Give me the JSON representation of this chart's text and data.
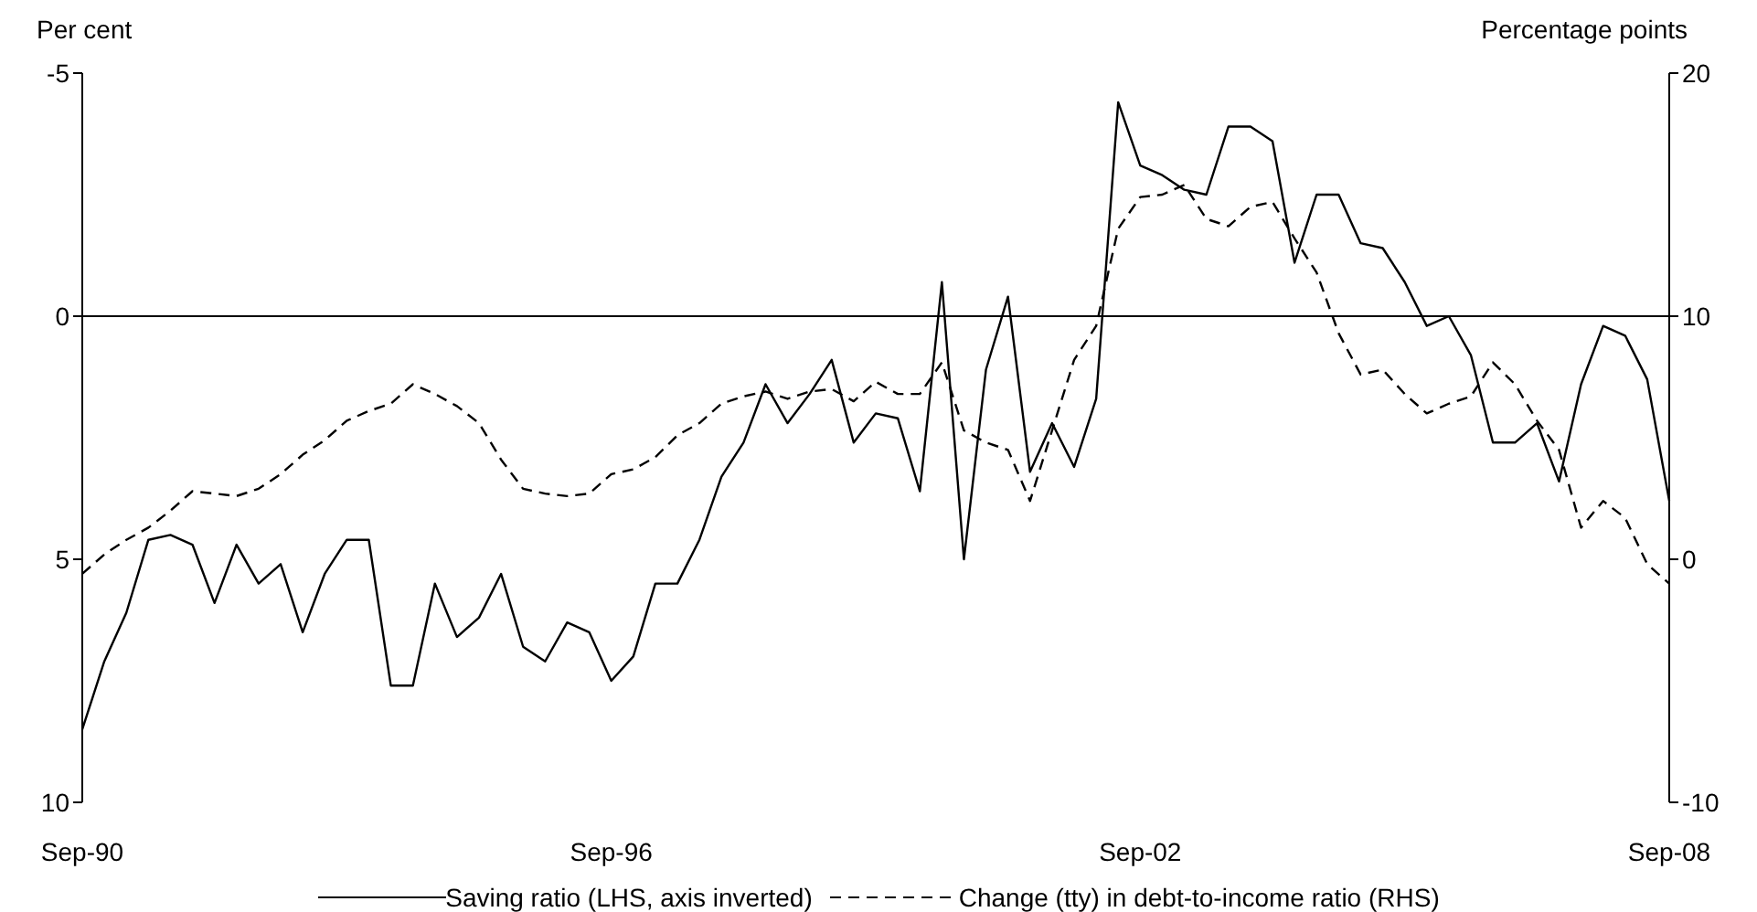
{
  "chart_data": {
    "type": "line",
    "categories": [
      "Sep-90",
      null,
      null,
      null,
      null,
      null,
      null,
      null,
      null,
      null,
      null,
      null,
      null,
      null,
      null,
      null,
      null,
      null,
      null,
      null,
      null,
      null,
      null,
      null,
      "Sep-96",
      null,
      null,
      null,
      null,
      null,
      null,
      null,
      null,
      null,
      null,
      null,
      null,
      null,
      null,
      null,
      null,
      null,
      null,
      null,
      null,
      null,
      null,
      null,
      "Sep-02",
      null,
      null,
      null,
      null,
      null,
      null,
      null,
      null,
      null,
      null,
      null,
      null,
      null,
      null,
      null,
      null,
      null,
      null,
      null,
      null,
      null,
      null,
      null,
      "Sep-08"
    ],
    "ylabel": "Per cent",
    "y2label": "Percentage points",
    "ylim": [
      10,
      -5
    ],
    "yticks": [
      -5,
      0,
      5,
      10
    ],
    "y2lim": [
      -10,
      20
    ],
    "y2ticks": [
      -10,
      0,
      10,
      20
    ],
    "ref_lines": [
      {
        "axis": "y",
        "value": 0
      }
    ],
    "legend": "bottom",
    "grid": false,
    "marker": "none",
    "series": [
      {
        "name": "Saving ratio (LHS, axis inverted)",
        "color": "#000000",
        "line_style": "solid",
        "values": [
          8.5,
          7.1,
          6.1,
          4.6,
          4.5,
          4.7,
          5.9,
          4.7,
          5.5,
          5.1,
          6.5,
          5.3,
          4.6,
          4.6,
          7.6,
          7.6,
          5.5,
          6.6,
          6.2,
          5.3,
          6.8,
          7.1,
          6.3,
          6.5,
          7.5,
          7.0,
          5.5,
          5.5,
          4.6,
          3.3,
          2.6,
          1.4,
          2.2,
          1.6,
          0.9,
          2.6,
          2.0,
          2.1,
          3.6,
          -0.7,
          5.0,
          1.1,
          -0.4,
          3.2,
          2.2,
          3.1,
          1.7,
          -4.4,
          -3.1,
          -2.9,
          -2.6,
          -2.5,
          -3.9,
          -3.9,
          -3.6,
          -1.1,
          -2.5,
          -2.5,
          -1.5,
          -1.4,
          -0.7,
          0.2,
          0.0,
          0.8,
          2.6,
          2.6,
          2.2,
          3.4,
          1.4,
          0.2,
          0.4,
          1.3,
          3.8
        ]
      },
      {
        "name": "Change (tty) in debt-to-income ratio (RHS)",
        "color": "#000000",
        "line_style": "dashed",
        "axis": "y2",
        "values": [
          -0.6,
          0.2,
          0.8,
          1.3,
          2.0,
          2.8,
          2.7,
          2.6,
          2.9,
          3.5,
          4.3,
          4.9,
          5.7,
          6.1,
          6.4,
          7.2,
          6.8,
          6.3,
          5.6,
          4.1,
          2.9,
          2.7,
          2.6,
          2.7,
          3.5,
          3.7,
          4.2,
          5.1,
          5.6,
          6.4,
          6.7,
          6.9,
          6.6,
          6.9,
          7.0,
          6.5,
          7.3,
          6.8,
          6.8,
          8.1,
          5.3,
          4.8,
          4.5,
          2.4,
          5.3,
          8.2,
          9.6,
          13.6,
          14.9,
          15.0,
          15.4,
          14.0,
          13.7,
          14.5,
          14.7,
          13.2,
          11.8,
          9.3,
          7.6,
          7.8,
          6.8,
          6.0,
          6.4,
          6.7,
          8.1,
          7.2,
          5.7,
          4.5,
          1.3,
          2.4,
          1.7,
          -0.2,
          -1.0
        ]
      }
    ]
  }
}
